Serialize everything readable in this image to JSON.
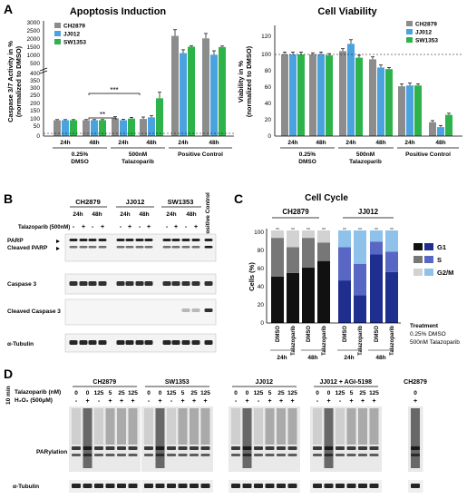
{
  "panel_a": {
    "letter": "A",
    "caspase": {
      "title": "Apoptosis Induction",
      "ylabel": "Caspase 3/7 Activity in %",
      "ylabel2": "(normalized to DMSO)",
      "yticks_top": [
        "3000",
        "2500",
        "2000",
        "1500",
        "1000",
        "500"
      ],
      "yticks_bottom": [
        "400",
        "350",
        "300",
        "250",
        "200",
        "150",
        "100",
        "50",
        "0"
      ],
      "sig1": "***",
      "sig2": "**"
    },
    "viability": {
      "title": "Cell Viability",
      "ylabel": "Viability in %",
      "ylabel2": "(normalized to DMSO)",
      "yticks": [
        "120",
        "100",
        "80",
        "60",
        "40",
        "20",
        "0"
      ]
    },
    "legend": [
      "CH2879",
      "JJ012",
      "SW1353"
    ],
    "time_labels": [
      "24h",
      "48h",
      "24h",
      "48h",
      "24h",
      "48h"
    ],
    "group_line1": [
      "0.25%",
      "500nM",
      ""
    ],
    "group_line2": [
      "DMSO",
      "Talazoparib",
      "Positive Control"
    ]
  },
  "panel_b": {
    "letter": "B",
    "cell_lines": [
      "CH2879",
      "JJ012",
      "SW1353"
    ],
    "positive_control": "Positive Control",
    "times": [
      "24h",
      "48h",
      "24h",
      "48h",
      "24h",
      "48h"
    ],
    "treatment_label": "Talazoparib (500nM)",
    "signs": [
      "-",
      "+",
      "-",
      "+",
      "-",
      "+",
      "-",
      "+",
      "-",
      "+",
      "-",
      "+"
    ],
    "band_labels": [
      "PARP",
      "Cleaved PARP",
      "Caspase 3",
      "Cleaved Caspase 3",
      "α-Tubulin"
    ]
  },
  "panel_c": {
    "letter": "C",
    "title": "Cell Cycle",
    "ylabel": "Cells (%)",
    "yticks": [
      "100",
      "80",
      "60",
      "40",
      "20",
      "0"
    ],
    "groups": [
      "CH2879",
      "JJ012"
    ],
    "bar_labels": [
      "DMSO",
      "Talazoparib",
      "DMSO",
      "Talazoparib",
      "DMSO",
      "Talazoparib",
      "DMSO",
      "Talazoparib"
    ],
    "time_labels": [
      "24h",
      "48h",
      "24h",
      "48h"
    ],
    "legend": [
      "G1",
      "S",
      "G2/M"
    ],
    "treatment_title": "Treatment",
    "treatment_lines": [
      "0.25% DMSO",
      "500nM Talazoparib"
    ]
  },
  "panel_d": {
    "letter": "D",
    "side_label": "10 min",
    "row1_label": "Talazoparib (nM)",
    "row2_label": "H₂O₂ (500μM)",
    "blocks": [
      {
        "name": "CH2879",
        "doses": [
          "0",
          "0",
          "125",
          "5",
          "25",
          "125"
        ],
        "h2o2": [
          "-",
          "+",
          "-",
          "+",
          "+",
          "+"
        ]
      },
      {
        "name": "SW1353",
        "doses": [
          "0",
          "0",
          "125",
          "5",
          "25",
          "125"
        ],
        "h2o2": [
          "-",
          "+",
          "-",
          "+",
          "+",
          "+"
        ]
      },
      {
        "name": "JJ012",
        "doses": [
          "0",
          "0",
          "125",
          "5",
          "25",
          "125"
        ],
        "h2o2": [
          "-",
          "+",
          "-",
          "+",
          "+",
          "+"
        ]
      },
      {
        "name": "JJ012 + AGI-5198",
        "doses": [
          "0",
          "0",
          "125",
          "5",
          "25",
          "125"
        ],
        "h2o2": [
          "-",
          "+",
          "-",
          "+",
          "+",
          "+"
        ]
      },
      {
        "name": "CH2879",
        "doses": [
          "0"
        ],
        "h2o2": [
          "+"
        ]
      }
    ],
    "band_labels": [
      "PARylation",
      "α-Tubulin"
    ]
  },
  "chart_data": [
    {
      "type": "bar",
      "title": "Apoptosis Induction",
      "ylabel": "Caspase 3/7 Activity in % (normalized to DMSO)",
      "categories": [
        "0.25% DMSO 24h",
        "0.25% DMSO 48h",
        "500nM Talazoparib 24h",
        "500nM Talazoparib 48h",
        "Positive Control 24h",
        "Positive Control 48h"
      ],
      "series": [
        {
          "name": "CH2879",
          "values": [
            100,
            100,
            112,
            108,
            2300,
            2150
          ],
          "errors": [
            4,
            4,
            10,
            12,
            380,
            300
          ]
        },
        {
          "name": "JJ012",
          "values": [
            100,
            100,
            100,
            118,
            1250,
            1150
          ],
          "errors": [
            4,
            4,
            6,
            10,
            200,
            240
          ]
        },
        {
          "name": "SW1353",
          "values": [
            100,
            100,
            110,
            238,
            1640,
            1620
          ],
          "errors": [
            4,
            4,
            8,
            38,
            60,
            60
          ]
        }
      ],
      "broken_axis": {
        "lower": [
          0,
          400
        ],
        "upper": [
          500,
          3000
        ]
      },
      "color": {
        "CH2879": "#8c8c8c",
        "JJ012": "#4aa3df",
        "SW1353": "#2db34a"
      }
    },
    {
      "type": "bar",
      "title": "Cell Viability",
      "ylabel": "Viability in % (normalized to DMSO)",
      "ylim": [
        0,
        120
      ],
      "categories": [
        "0.25% DMSO 24h",
        "0.25% DMSO 48h",
        "500nM Talazoparib 24h",
        "500nM Talazoparib 48h",
        "Positive Control 24h",
        "Positive Control 48h"
      ],
      "series": [
        {
          "name": "CH2879",
          "values": [
            100,
            100,
            104,
            94,
            61,
            17
          ],
          "errors": [
            3,
            2,
            3,
            3,
            3,
            2
          ]
        },
        {
          "name": "JJ012",
          "values": [
            100,
            100,
            113,
            84,
            62,
            11
          ],
          "errors": [
            3,
            3,
            5,
            3,
            3,
            2
          ]
        },
        {
          "name": "SW1353",
          "values": [
            100,
            99,
            96,
            82,
            62,
            26
          ],
          "errors": [
            3,
            2,
            3,
            2,
            2,
            2
          ]
        }
      ]
    },
    {
      "type": "bar",
      "stacked": true,
      "title": "Cell Cycle",
      "ylabel": "Cells (%)",
      "ylim": [
        0,
        100
      ],
      "categories": [
        "CH2879 24h DMSO",
        "CH2879 24h Talazoparib",
        "CH2879 48h DMSO",
        "CH2879 48h Talazoparib",
        "JJ012 24h DMSO",
        "JJ012 24h Talazoparib",
        "JJ012 48h DMSO",
        "JJ012 48h Talazoparib"
      ],
      "series": [
        {
          "name": "G1",
          "values": [
            50,
            54,
            60,
            67,
            46,
            30,
            74,
            55
          ]
        },
        {
          "name": "S",
          "values": [
            42,
            28,
            32,
            20,
            36,
            34,
            14,
            22
          ]
        },
        {
          "name": "G2/M",
          "values": [
            8,
            18,
            8,
            13,
            18,
            36,
            12,
            23
          ]
        }
      ]
    }
  ]
}
